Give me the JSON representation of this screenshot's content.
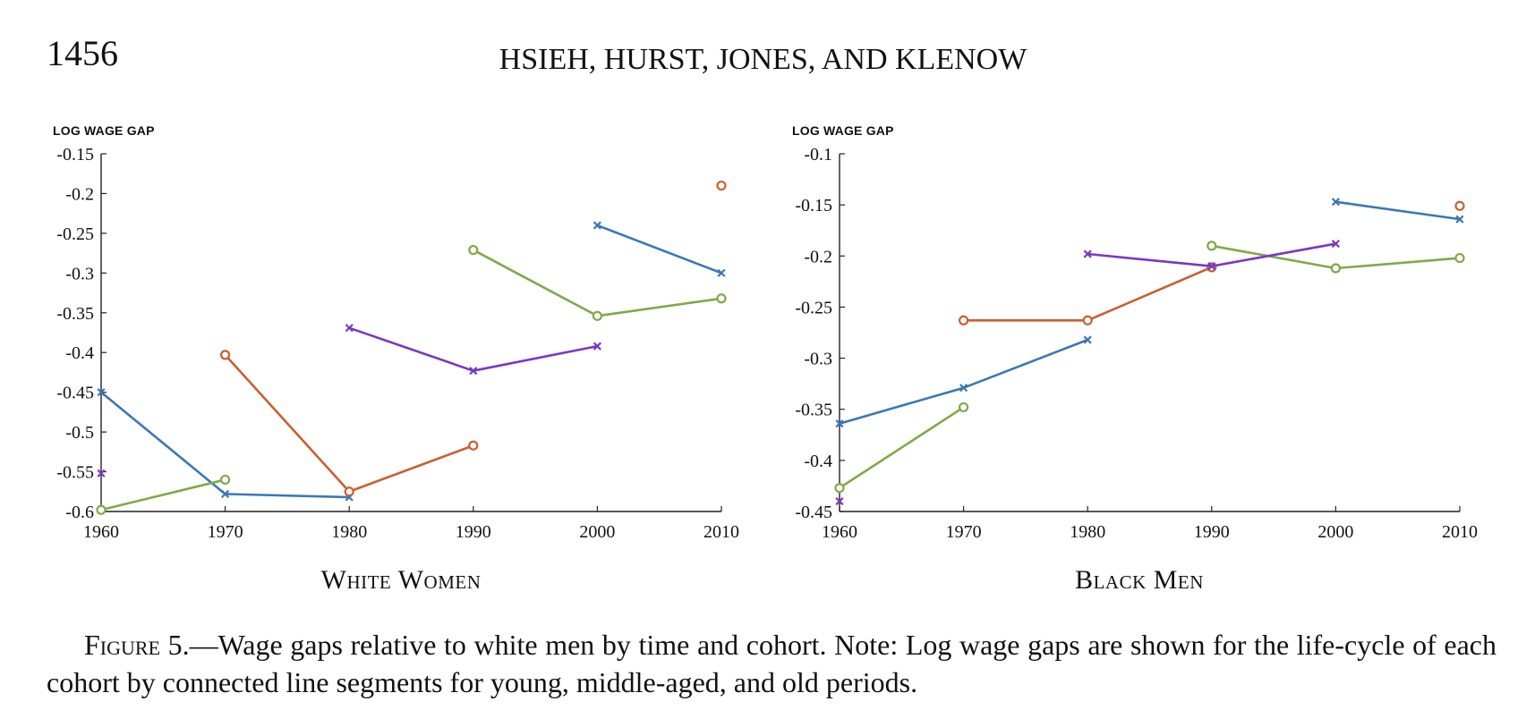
{
  "header": {
    "page_number": "1456",
    "running_head": "HSIEH, HURST, JONES, AND KLENOW"
  },
  "caption": {
    "label": "Figure 5",
    "text": ".—Wage gaps relative to white men by time and cohort. Note: Log wage gaps are shown for the life-cycle of each cohort by connected line segments for young, middle-aged, and old periods."
  },
  "colors": {
    "blue": "#3a78b5",
    "orange": "#c9602e",
    "green": "#82a848",
    "purple": "#7a38c2"
  },
  "chart_data": [
    {
      "type": "line",
      "title": "White Women",
      "ylabel": "LOG WAGE GAP",
      "xlabel": "",
      "x_ticks": [
        1960,
        1970,
        1980,
        1990,
        2000,
        2010
      ],
      "y_ticks": [
        "-0.15",
        "-0.2",
        "-0.25",
        "-0.3",
        "-0.35",
        "-0.4",
        "-0.45",
        "-0.5",
        "-0.55",
        "-0.6"
      ],
      "xlim": [
        1960,
        2010
      ],
      "ylim": [
        -0.6,
        -0.15
      ],
      "series": [
        {
          "color": "blue",
          "marker": "x",
          "x": [
            1960,
            1970,
            1980
          ],
          "y": [
            -0.45,
            -0.578,
            -0.582
          ]
        },
        {
          "color": "blue",
          "marker": "x",
          "x": [
            2000,
            2010
          ],
          "y": [
            -0.24,
            -0.3
          ]
        },
        {
          "color": "orange",
          "marker": "o",
          "x": [
            1970,
            1980,
            1990
          ],
          "y": [
            -0.403,
            -0.575,
            -0.517
          ]
        },
        {
          "color": "orange",
          "marker": "o",
          "x": [
            2010
          ],
          "y": [
            -0.19
          ]
        },
        {
          "color": "green",
          "marker": "o",
          "x": [
            1960,
            1970
          ],
          "y": [
            -0.598,
            -0.56
          ]
        },
        {
          "color": "green",
          "marker": "o",
          "x": [
            1990,
            2000,
            2010
          ],
          "y": [
            -0.271,
            -0.354,
            -0.332
          ]
        },
        {
          "color": "purple",
          "marker": "x",
          "x": [
            1960
          ],
          "y": [
            -0.552
          ]
        },
        {
          "color": "purple",
          "marker": "x",
          "x": [
            1980,
            1990,
            2000
          ],
          "y": [
            -0.369,
            -0.423,
            -0.392
          ]
        }
      ]
    },
    {
      "type": "line",
      "title": "Black Men",
      "ylabel": "LOG WAGE GAP",
      "xlabel": "",
      "x_ticks": [
        1960,
        1970,
        1980,
        1990,
        2000,
        2010
      ],
      "y_ticks": [
        "-0.1",
        "-0.15",
        "-0.2",
        "-0.25",
        "-0.3",
        "-0.35",
        "-0.4",
        "-0.45"
      ],
      "xlim": [
        1960,
        2010
      ],
      "ylim": [
        -0.45,
        -0.1
      ],
      "series": [
        {
          "color": "blue",
          "marker": "x",
          "x": [
            1960,
            1970,
            1980
          ],
          "y": [
            -0.364,
            -0.329,
            -0.282
          ]
        },
        {
          "color": "blue",
          "marker": "x",
          "x": [
            2000,
            2010
          ],
          "y": [
            -0.147,
            -0.164
          ]
        },
        {
          "color": "orange",
          "marker": "o",
          "x": [
            1970,
            1980,
            1990
          ],
          "y": [
            -0.263,
            -0.263,
            -0.211
          ]
        },
        {
          "color": "orange",
          "marker": "o",
          "x": [
            2010
          ],
          "y": [
            -0.151
          ]
        },
        {
          "color": "green",
          "marker": "o",
          "x": [
            1960,
            1970
          ],
          "y": [
            -0.427,
            -0.348
          ]
        },
        {
          "color": "green",
          "marker": "o",
          "x": [
            1990,
            2000,
            2010
          ],
          "y": [
            -0.19,
            -0.212,
            -0.202
          ]
        },
        {
          "color": "purple",
          "marker": "x",
          "x": [
            1960
          ],
          "y": [
            -0.44
          ]
        },
        {
          "color": "purple",
          "marker": "x",
          "x": [
            1980,
            1990,
            2000
          ],
          "y": [
            -0.198,
            -0.21,
            -0.188
          ]
        }
      ]
    }
  ]
}
